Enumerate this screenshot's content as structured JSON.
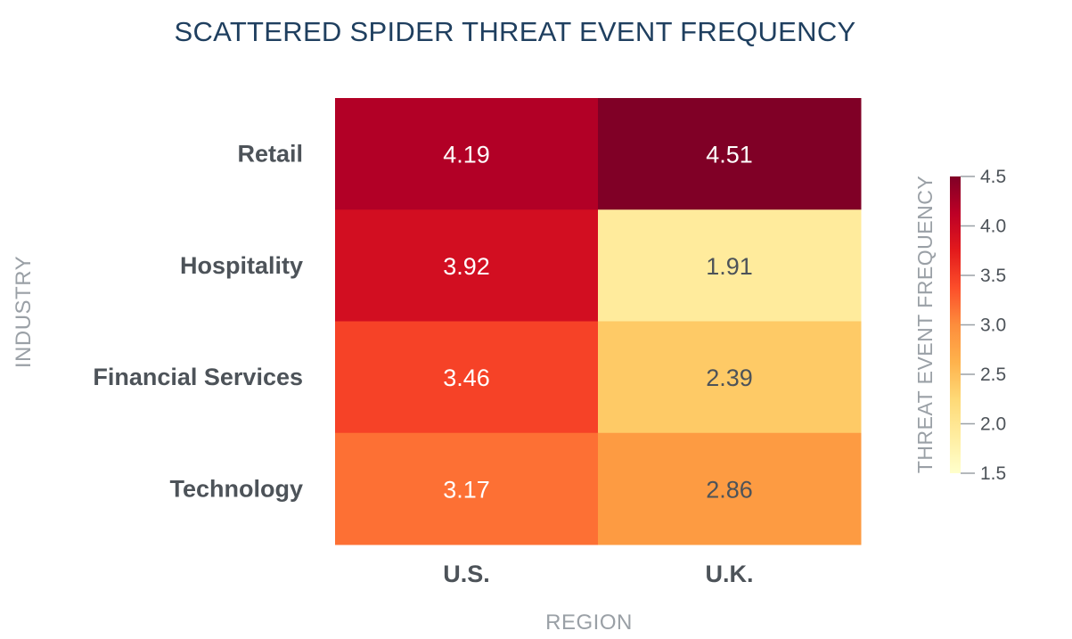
{
  "chart_data": {
    "type": "heatmap",
    "title": "SCATTERED SPIDER THREAT EVENT FREQUENCY",
    "xlabel": "REGION",
    "ylabel": "INDUSTRY",
    "x_categories": [
      "U.S.",
      "U.K."
    ],
    "y_categories": [
      "Retail",
      "Hospitality",
      "Financial Services",
      "Technology"
    ],
    "values": [
      [
        4.19,
        4.51
      ],
      [
        3.92,
        1.91
      ],
      [
        3.46,
        2.39
      ],
      [
        3.17,
        2.86
      ]
    ],
    "value_labels": [
      [
        "4.19",
        "4.51"
      ],
      [
        "3.92",
        "1.91"
      ],
      [
        "3.46",
        "2.39"
      ],
      [
        "3.17",
        "2.86"
      ]
    ],
    "colorbar": {
      "title": "THREAT EVENT FREQUENCY",
      "range": [
        1.5,
        4.5
      ],
      "ticks": [
        1.5,
        2.0,
        2.5,
        3.0,
        3.5,
        4.0,
        4.5
      ],
      "tick_labels": [
        "1.5",
        "2.0",
        "2.5",
        "3.0",
        "3.5",
        "4.0",
        "4.5"
      ],
      "colorscale": [
        "#ffffcc",
        "#ffeda0",
        "#fed976",
        "#feb24c",
        "#fd8d3c",
        "#fc4e2a",
        "#e31a1c",
        "#bd0026",
        "#800026"
      ]
    },
    "grid": false,
    "legend": "colorbar-right"
  }
}
